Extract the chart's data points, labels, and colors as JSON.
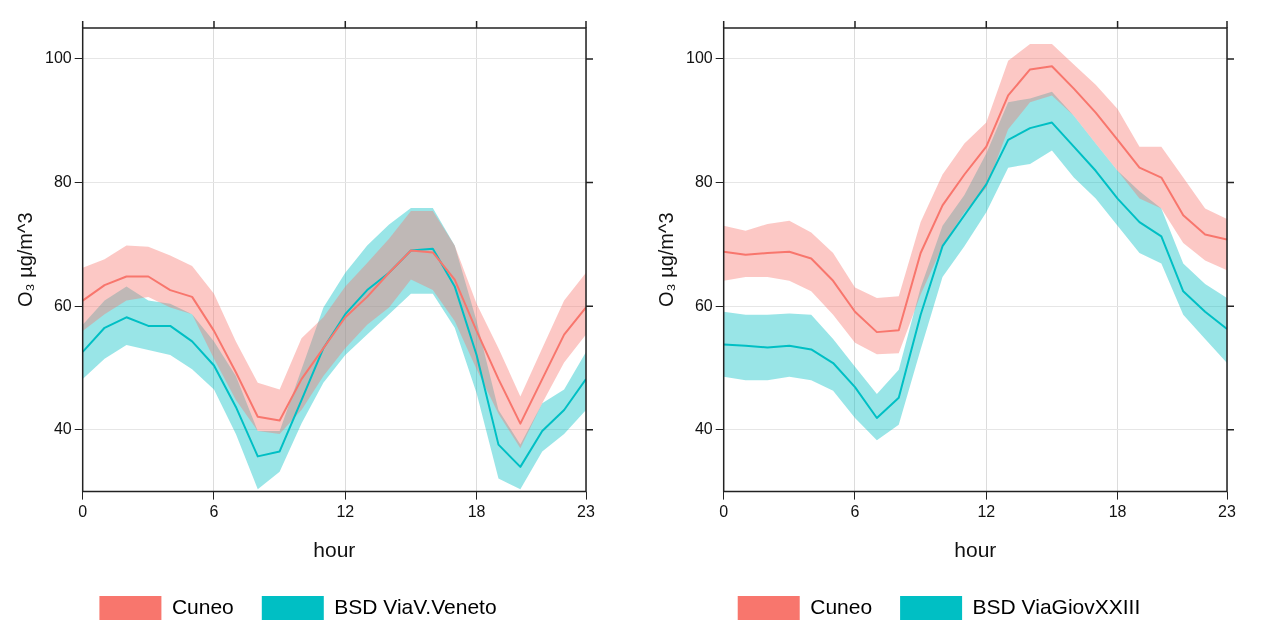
{
  "chart_data": [
    {
      "type": "line",
      "xlabel": "hour",
      "ylabel": "O₃ µg/m^3",
      "x": [
        0,
        1,
        2,
        3,
        4,
        5,
        6,
        7,
        8,
        9,
        10,
        11,
        12,
        13,
        14,
        15,
        16,
        17,
        18,
        19,
        20,
        21,
        22,
        23
      ],
      "xlim": [
        0,
        23
      ],
      "xticks": [
        0,
        6,
        12,
        18,
        23
      ],
      "ylim": [
        30,
        105
      ],
      "yticks": [
        40,
        60,
        80,
        100
      ],
      "grid": true,
      "legend": "bottom",
      "marker": "none",
      "line_style": "solid",
      "series": [
        {
          "name": "Cuneo",
          "color": "#f8766d",
          "values": [
            60.9,
            63.4,
            64.8,
            64.8,
            62.6,
            61.5,
            56,
            49.3,
            42.1,
            41.5,
            48.2,
            53.2,
            58.2,
            61.5,
            65.4,
            69,
            68.7,
            64.3,
            56,
            48.2,
            41,
            48.2,
            55.4,
            59.8
          ],
          "lower": [
            56,
            58.7,
            60.9,
            61.5,
            59.8,
            58.7,
            51.5,
            44.8,
            39.8,
            39.3,
            43.2,
            48.7,
            53.2,
            57,
            59.8,
            64.3,
            62.6,
            57.6,
            49.8,
            42.6,
            37,
            44.3,
            50.9,
            55.4
          ],
          "upper": [
            66.2,
            67.6,
            69.8,
            69.6,
            68.2,
            66.5,
            62,
            54.3,
            47.6,
            46.5,
            54.8,
            58.2,
            63.2,
            67,
            70.9,
            75.4,
            75.4,
            69.8,
            60.4,
            53.2,
            45.4,
            53.2,
            60.9,
            65.4
          ]
        },
        {
          "name": "BSD ViaV.Veneto",
          "color": "#00bfc4",
          "values": [
            52.6,
            56.5,
            58.2,
            56.8,
            56.8,
            54.3,
            50.4,
            43.7,
            35.7,
            36.5,
            44.8,
            53.2,
            58.7,
            62.6,
            65.4,
            69,
            69.3,
            63.2,
            52.1,
            37.6,
            34,
            39.8,
            43.2,
            48.2
          ],
          "lower": [
            48.2,
            51.5,
            53.7,
            52.9,
            52.1,
            49.8,
            46.5,
            39.3,
            30.4,
            33.2,
            41,
            47.6,
            52.1,
            55.4,
            58.7,
            62,
            62,
            56.5,
            45.9,
            32.1,
            30.4,
            36.5,
            39.3,
            43.2
          ],
          "upper": [
            57,
            60.9,
            63.2,
            60.9,
            60.4,
            58.7,
            54.3,
            48.7,
            39.8,
            39.8,
            49.8,
            59.8,
            65.4,
            69.8,
            73.2,
            75.9,
            75.9,
            69.8,
            57.6,
            43.2,
            37.6,
            44.3,
            46.5,
            52.6
          ]
        }
      ]
    },
    {
      "type": "line",
      "xlabel": "hour",
      "ylabel": "O₃ µg/m^3",
      "x": [
        0,
        1,
        2,
        3,
        4,
        5,
        6,
        7,
        8,
        9,
        10,
        11,
        12,
        13,
        14,
        15,
        16,
        17,
        18,
        19,
        20,
        21,
        22,
        23
      ],
      "xlim": [
        0,
        23
      ],
      "xticks": [
        0,
        6,
        12,
        18,
        23
      ],
      "ylim": [
        30,
        105
      ],
      "yticks": [
        40,
        60,
        80,
        100
      ],
      "grid": true,
      "legend": "bottom",
      "marker": "none",
      "line_style": "solid",
      "series": [
        {
          "name": "Cuneo",
          "color": "#f8766d",
          "values": [
            68.8,
            68.3,
            68.6,
            68.8,
            67.7,
            64.1,
            59.1,
            55.8,
            56.1,
            68.6,
            76.3,
            81.3,
            85.8,
            94.1,
            98.3,
            98.8,
            95.2,
            91.3,
            86.9,
            82.4,
            80.8,
            74.7,
            71.6,
            70.8
          ],
          "lower": [
            64.1,
            64.7,
            64.7,
            64.1,
            62.4,
            58.6,
            54.1,
            52.2,
            52.4,
            61.9,
            69.7,
            75.2,
            79.1,
            88.6,
            93,
            94.1,
            90.8,
            86.3,
            81.9,
            77.4,
            75.8,
            70.2,
            67.4,
            65.8
          ],
          "upper": [
            73,
            72.2,
            73.3,
            73.8,
            71.9,
            68.6,
            63,
            61.3,
            61.6,
            73.6,
            81.3,
            86.3,
            89.7,
            99.7,
            102.4,
            102.4,
            99.1,
            95.8,
            91.9,
            85.8,
            85.8,
            80.8,
            75.8,
            74.1
          ]
        },
        {
          "name": "BSD ViaGiovXXIII",
          "color": "#00bfc4",
          "values": [
            53.8,
            53.6,
            53.3,
            53.6,
            53,
            50.8,
            46.9,
            41.9,
            45.2,
            58.6,
            69.7,
            74.7,
            79.7,
            86.9,
            88.8,
            89.7,
            85.8,
            81.9,
            77.4,
            73.6,
            71.3,
            62.4,
            59.1,
            56.3
          ],
          "lower": [
            48.6,
            48,
            48,
            48.6,
            48,
            46.3,
            41.9,
            38.3,
            40.8,
            53,
            64.7,
            69.7,
            75.2,
            82.4,
            83,
            85.2,
            80.8,
            77.4,
            73,
            68.6,
            66.9,
            58.6,
            54.7,
            50.8
          ],
          "upper": [
            59.1,
            58.6,
            58.6,
            58.8,
            58.6,
            54.7,
            50.2,
            45.8,
            49.7,
            63,
            73,
            78,
            84.7,
            93,
            93.6,
            94.7,
            90.8,
            86.3,
            81.9,
            78.6,
            75.8,
            66.9,
            63.6,
            61.3
          ]
        }
      ]
    }
  ]
}
